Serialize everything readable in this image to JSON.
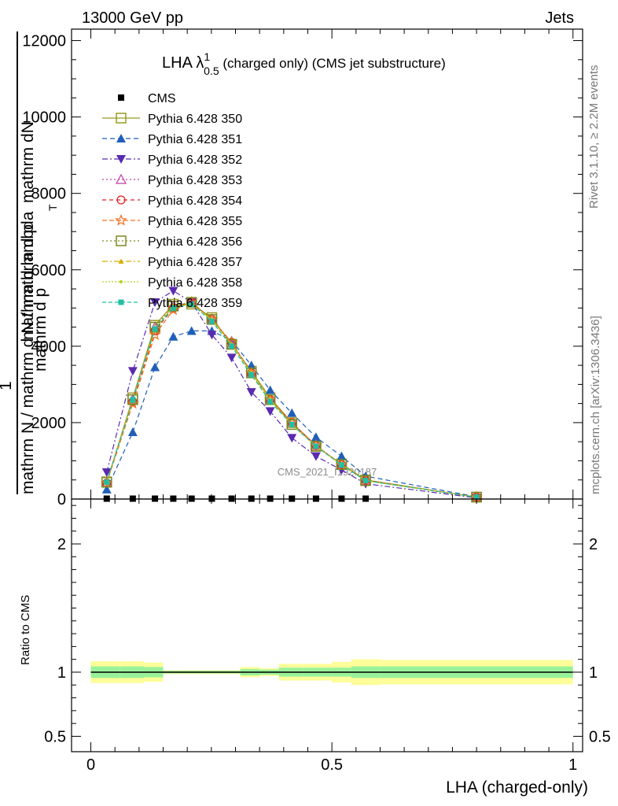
{
  "header": {
    "left": "13000 GeV pp",
    "right": "Jets",
    "title_prefix": "LHA λ",
    "title_sup": "1",
    "title_sub": "0.5",
    "title_suffix": " (charged only) (CMS jet substructure)",
    "watermark": "CMS_2021_I1920187",
    "side_right_top": "Rivet 3.1.10, ≥ 2.2M events",
    "side_right_bottom": "mcplots.cern.ch [arXiv:1306.3436]"
  },
  "chart_data": [
    {
      "type": "line",
      "ylabel_top": "mathrm dN",
      "ylabel_bottom": "mathrm d p_T mathrm d lambda",
      "ylabel_full": "1 / mathrm N mathrm d N / mathrm d p_T mathrm d lambda",
      "ylabel_parts": [
        "mathrm dN",
        "mathrm d lambda",
        "mathrm d p",
        "T",
        "mathrm N / mathrm d N / mathrm d p",
        "1"
      ],
      "xlim": [
        -0.04,
        1.02
      ],
      "ylim": [
        0,
        12300
      ],
      "yticks": [
        0,
        2000,
        4000,
        6000,
        8000,
        10000,
        12000
      ],
      "ytick_labels": [
        "0",
        "2000",
        "4000",
        "6000",
        "8000",
        "10000",
        "12000"
      ],
      "x": [
        0.033,
        0.087,
        0.133,
        0.171,
        0.209,
        0.251,
        0.292,
        0.333,
        0.372,
        0.417,
        0.467,
        0.52,
        0.57,
        0.8
      ],
      "series": [
        {
          "name": "CMS",
          "color": "#000000",
          "marker": "square",
          "dash": "none",
          "values": [
            10,
            10,
            10,
            10,
            10,
            10,
            10,
            10,
            10,
            10,
            10,
            10,
            10,
            10
          ]
        },
        {
          "name": "Pythia 6.428 350",
          "color": "#9a9a24",
          "marker": "square-open",
          "dash": "none",
          "values": [
            450,
            2650,
            4550,
            5100,
            5100,
            4750,
            4050,
            3350,
            2650,
            2000,
            1380,
            920,
            500,
            50
          ]
        },
        {
          "name": "Pythia 6.428 351",
          "color": "#1f5fb8",
          "marker": "triangle-up",
          "dash": "6,4",
          "values": [
            250,
            1750,
            3450,
            4250,
            4400,
            4400,
            4150,
            3500,
            2850,
            2250,
            1620,
            1120,
            600,
            60
          ]
        },
        {
          "name": "Pythia 6.428 352",
          "color": "#5a2ab0",
          "marker": "triangle-down",
          "dash": "7,3,2,3",
          "values": [
            700,
            3350,
            5150,
            5450,
            5150,
            4300,
            3700,
            2800,
            2300,
            1600,
            1120,
            760,
            400,
            30
          ]
        },
        {
          "name": "Pythia 6.428 353",
          "color": "#c23aa8",
          "marker": "triangle-open",
          "dash": "2,3",
          "values": [
            430,
            2600,
            4500,
            5050,
            5150,
            4700,
            4050,
            3300,
            2600,
            2000,
            1400,
            900,
            480,
            50
          ]
        },
        {
          "name": "Pythia 6.428 354",
          "color": "#e02020",
          "marker": "circle-open",
          "dash": "5,4",
          "values": [
            420,
            2550,
            4400,
            5000,
            5150,
            4700,
            4100,
            3300,
            2600,
            2000,
            1400,
            900,
            490,
            50
          ]
        },
        {
          "name": "Pythia 6.428 355",
          "color": "#f07020",
          "marker": "star-open",
          "dash": "6,3",
          "values": [
            420,
            2500,
            4300,
            4950,
            5150,
            4700,
            4100,
            3300,
            2600,
            2000,
            1400,
            900,
            490,
            50
          ]
        },
        {
          "name": "Pythia 6.428 356",
          "color": "#7a8a20",
          "marker": "square-open",
          "dash": "2,3",
          "values": [
            440,
            2600,
            4500,
            5050,
            5150,
            4700,
            4050,
            3300,
            2600,
            1950,
            1380,
            900,
            480,
            50
          ]
        },
        {
          "name": "Pythia 6.428 357",
          "color": "#d4b000",
          "marker": "triangle-small",
          "dash": "7,3,2,3",
          "values": [
            440,
            2600,
            4450,
            5050,
            5100,
            4700,
            4050,
            3300,
            2600,
            1950,
            1380,
            900,
            480,
            50
          ]
        },
        {
          "name": "Pythia 6.428 358",
          "color": "#b8d020",
          "marker": "dot",
          "dash": "2,2",
          "values": [
            440,
            2600,
            4450,
            5050,
            5100,
            4700,
            4050,
            3300,
            2600,
            1950,
            1380,
            900,
            480,
            50
          ]
        },
        {
          "name": "Pythia 6.428 359",
          "color": "#20c0a0",
          "marker": "square-small",
          "dash": "5,3",
          "values": [
            440,
            2600,
            4450,
            5000,
            5100,
            4650,
            4000,
            3250,
            2550,
            1950,
            1380,
            890,
            480,
            50
          ]
        }
      ]
    },
    {
      "type": "area",
      "ylabel": "Ratio to CMS",
      "xlabel": "LHA (charged-only)",
      "xlim": [
        -0.04,
        1.02
      ],
      "ylim": [
        0.38,
        2.35
      ],
      "yticks": [
        0.5,
        1,
        2
      ],
      "ytick_labels": [
        "0.5",
        "1",
        "2"
      ],
      "xticks": [
        0,
        0.5,
        1
      ],
      "xtick_labels": [
        "0",
        "0.5",
        "1"
      ],
      "bins": [
        0,
        0.06,
        0.11,
        0.15,
        0.19,
        0.23,
        0.27,
        0.31,
        0.35,
        0.39,
        0.44,
        0.5,
        0.54,
        0.6,
        1.0
      ],
      "band_inner_halfwidth": [
        0.045,
        0.045,
        0.04,
        0.01,
        0.01,
        0.01,
        0.01,
        0.025,
        0.02,
        0.035,
        0.035,
        0.035,
        0.045,
        0.045
      ],
      "band_outer_halfwidth": [
        0.085,
        0.085,
        0.075,
        0.015,
        0.015,
        0.015,
        0.015,
        0.04,
        0.03,
        0.065,
        0.065,
        0.08,
        0.1,
        0.095
      ],
      "inner_color": "#99f299",
      "outer_color": "#fdfd99",
      "reference": 1
    }
  ]
}
